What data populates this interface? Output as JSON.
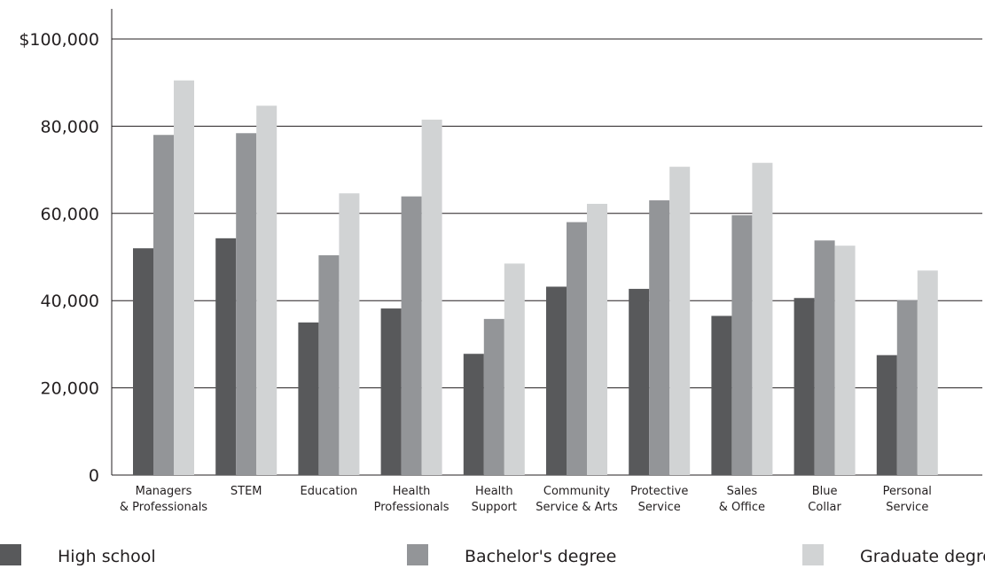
{
  "chart_data": {
    "type": "bar",
    "title": "",
    "xlabel": "",
    "ylabel": "",
    "ylim": [
      0,
      100000
    ],
    "ytick_values": [
      0,
      20000,
      40000,
      60000,
      80000,
      100000
    ],
    "ytick_labels": [
      "0",
      "20,000",
      "40,000",
      "60,000",
      "80,000",
      "$100,000"
    ],
    "grid": true,
    "legend_position": "bottom",
    "categories": [
      [
        "Managers",
        "& Professionals"
      ],
      [
        "STEM"
      ],
      [
        "Education"
      ],
      [
        "Health",
        "Professionals"
      ],
      [
        "Health",
        "Support"
      ],
      [
        "Community",
        "Service & Arts"
      ],
      [
        "Protective",
        "Service"
      ],
      [
        "Sales",
        "& Office"
      ],
      [
        "Blue",
        "Collar"
      ],
      [
        "Personal",
        "Service"
      ]
    ],
    "series": [
      {
        "name": "High school",
        "color": "#58595b",
        "values": [
          52000,
          54300,
          35000,
          38200,
          27800,
          43200,
          42700,
          36500,
          40600,
          27500
        ]
      },
      {
        "name": "Bachelor's degree",
        "color": "#939598",
        "values": [
          78000,
          78400,
          50400,
          63900,
          35800,
          58000,
          63000,
          59600,
          53800,
          40100
        ]
      },
      {
        "name": "Graduate degree",
        "color": "#d1d3d4",
        "values": [
          90500,
          84700,
          64600,
          81500,
          48500,
          62200,
          70700,
          71600,
          52600,
          46900
        ]
      }
    ]
  }
}
